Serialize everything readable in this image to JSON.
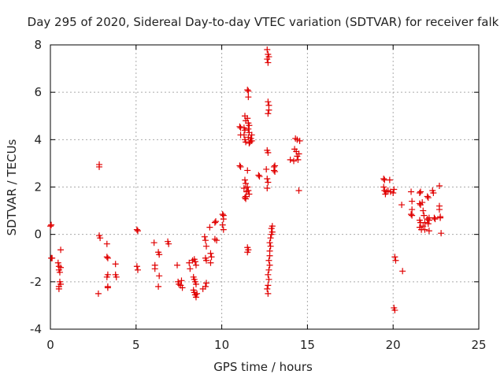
{
  "chart_data": {
    "type": "scatter",
    "title": "Day 295 of 2020, Sidereal Day-to-day VTEC variation (SDTVAR) for receiver falk",
    "xlabel": "GPS time / hours",
    "ylabel": "SDTVAR / TECUs",
    "xlim": [
      0,
      25
    ],
    "ylim": [
      -4,
      8
    ],
    "xticks": [
      0,
      5,
      10,
      15,
      20,
      25
    ],
    "yticks": [
      -4,
      -2,
      0,
      2,
      4,
      6,
      8
    ],
    "grid": true,
    "marker": "+",
    "color": "#e00000",
    "series": [
      {
        "name": "SDTVAR",
        "points": [
          [
            0.0,
            0.35
          ],
          [
            0.05,
            0.4
          ],
          [
            0.05,
            -1.0
          ],
          [
            0.1,
            -1.0
          ],
          [
            0.45,
            -1.2
          ],
          [
            0.5,
            -1.35
          ],
          [
            0.5,
            -1.5
          ],
          [
            0.55,
            -1.6
          ],
          [
            0.55,
            -2.0
          ],
          [
            0.5,
            -2.2
          ],
          [
            0.5,
            -2.3
          ],
          [
            0.6,
            -0.65
          ],
          [
            0.6,
            -1.4
          ],
          [
            0.6,
            -2.1
          ],
          [
            2.85,
            2.95
          ],
          [
            2.85,
            2.85
          ],
          [
            2.85,
            -0.05
          ],
          [
            2.9,
            -0.15
          ],
          [
            2.8,
            -2.5
          ],
          [
            3.3,
            -0.4
          ],
          [
            3.3,
            -0.95
          ],
          [
            3.35,
            -1.0
          ],
          [
            3.35,
            -1.7
          ],
          [
            3.3,
            -1.8
          ],
          [
            3.35,
            -2.2
          ],
          [
            3.35,
            -2.25
          ],
          [
            3.8,
            -1.25
          ],
          [
            3.8,
            -1.7
          ],
          [
            3.85,
            -1.8
          ],
          [
            5.05,
            0.2
          ],
          [
            5.1,
            0.15
          ],
          [
            5.05,
            -1.35
          ],
          [
            5.1,
            -1.5
          ],
          [
            6.05,
            -0.35
          ],
          [
            6.1,
            -1.3
          ],
          [
            6.1,
            -1.45
          ],
          [
            6.3,
            -0.75
          ],
          [
            6.35,
            -0.85
          ],
          [
            6.35,
            -1.75
          ],
          [
            6.3,
            -2.2
          ],
          [
            6.85,
            -0.3
          ],
          [
            6.9,
            -0.4
          ],
          [
            7.4,
            -1.3
          ],
          [
            7.45,
            -2.0
          ],
          [
            7.5,
            -2.1
          ],
          [
            7.6,
            -2.15
          ],
          [
            7.65,
            -1.95
          ],
          [
            7.7,
            -2.25
          ],
          [
            8.1,
            -1.2
          ],
          [
            8.15,
            -1.45
          ],
          [
            8.3,
            -1.1
          ],
          [
            8.4,
            -1.05
          ],
          [
            8.45,
            -1.15
          ],
          [
            8.5,
            -1.3
          ],
          [
            8.35,
            -1.8
          ],
          [
            8.4,
            -1.9
          ],
          [
            8.45,
            -2.0
          ],
          [
            8.5,
            -2.1
          ],
          [
            8.35,
            -2.35
          ],
          [
            8.4,
            -2.45
          ],
          [
            8.45,
            -2.55
          ],
          [
            8.5,
            -2.65
          ],
          [
            8.55,
            -2.5
          ],
          [
            8.9,
            -2.3
          ],
          [
            9.05,
            -2.2
          ],
          [
            9.1,
            -2.05
          ],
          [
            9.0,
            -0.1
          ],
          [
            9.05,
            -0.25
          ],
          [
            9.1,
            -0.5
          ],
          [
            9.05,
            -1.0
          ],
          [
            9.1,
            -1.1
          ],
          [
            9.3,
            0.3
          ],
          [
            9.35,
            -0.8
          ],
          [
            9.4,
            -0.95
          ],
          [
            9.35,
            -1.2
          ],
          [
            9.6,
            0.5
          ],
          [
            9.65,
            0.55
          ],
          [
            9.6,
            -0.2
          ],
          [
            9.7,
            -0.25
          ],
          [
            10.05,
            0.85
          ],
          [
            10.1,
            0.8
          ],
          [
            10.1,
            0.65
          ],
          [
            10.05,
            0.4
          ],
          [
            10.1,
            0.2
          ],
          [
            11.05,
            4.55
          ],
          [
            11.1,
            4.5
          ],
          [
            11.1,
            4.2
          ],
          [
            11.05,
            2.9
          ],
          [
            11.1,
            2.85
          ],
          [
            11.35,
            5.0
          ],
          [
            11.4,
            4.8
          ],
          [
            11.3,
            4.5
          ],
          [
            11.35,
            4.4
          ],
          [
            11.3,
            4.2
          ],
          [
            11.35,
            4.0
          ],
          [
            11.4,
            3.9
          ],
          [
            11.5,
            6.1
          ],
          [
            11.55,
            6.05
          ],
          [
            11.55,
            5.8
          ],
          [
            11.5,
            4.9
          ],
          [
            11.55,
            4.7
          ],
          [
            11.6,
            4.6
          ],
          [
            11.55,
            4.45
          ],
          [
            11.6,
            4.3
          ],
          [
            11.55,
            4.1
          ],
          [
            11.6,
            3.85
          ],
          [
            11.65,
            3.9
          ],
          [
            11.7,
            4.05
          ],
          [
            11.75,
            4.2
          ],
          [
            11.75,
            3.95
          ],
          [
            11.5,
            2.7
          ],
          [
            11.35,
            2.3
          ],
          [
            11.4,
            2.15
          ],
          [
            11.3,
            1.95
          ],
          [
            11.45,
            1.8
          ],
          [
            11.55,
            1.85
          ],
          [
            11.6,
            1.7
          ],
          [
            11.4,
            1.6
          ],
          [
            11.35,
            1.55
          ],
          [
            11.4,
            1.5
          ],
          [
            11.5,
            2.0
          ],
          [
            11.5,
            -0.55
          ],
          [
            11.55,
            -0.65
          ],
          [
            11.5,
            -0.75
          ],
          [
            12.15,
            2.5
          ],
          [
            12.2,
            2.45
          ],
          [
            12.65,
            7.8
          ],
          [
            12.7,
            7.6
          ],
          [
            12.75,
            7.5
          ],
          [
            12.65,
            7.4
          ],
          [
            12.7,
            7.25
          ],
          [
            12.7,
            5.6
          ],
          [
            12.75,
            5.45
          ],
          [
            12.75,
            5.25
          ],
          [
            12.7,
            5.1
          ],
          [
            12.65,
            3.55
          ],
          [
            12.7,
            3.45
          ],
          [
            12.6,
            2.75
          ],
          [
            12.65,
            2.35
          ],
          [
            12.7,
            2.2
          ],
          [
            12.65,
            1.95
          ],
          [
            12.95,
            0.35
          ],
          [
            12.9,
            0.25
          ],
          [
            12.95,
            0.1
          ],
          [
            12.9,
            0.0
          ],
          [
            12.85,
            -0.15
          ],
          [
            12.8,
            -0.35
          ],
          [
            12.85,
            -0.5
          ],
          [
            12.8,
            -0.7
          ],
          [
            12.8,
            -0.9
          ],
          [
            12.75,
            -1.1
          ],
          [
            12.8,
            -1.3
          ],
          [
            12.75,
            -1.5
          ],
          [
            12.7,
            -1.7
          ],
          [
            12.75,
            -1.9
          ],
          [
            12.7,
            -2.15
          ],
          [
            12.65,
            -2.3
          ],
          [
            12.7,
            -2.5
          ],
          [
            13.05,
            2.85
          ],
          [
            13.1,
            2.9
          ],
          [
            13.05,
            2.7
          ],
          [
            13.1,
            2.65
          ],
          [
            14.0,
            3.15
          ],
          [
            14.2,
            3.1
          ],
          [
            14.25,
            3.6
          ],
          [
            14.35,
            3.5
          ],
          [
            14.4,
            3.3
          ],
          [
            14.45,
            3.15
          ],
          [
            14.5,
            3.4
          ],
          [
            14.3,
            4.05
          ],
          [
            14.4,
            4.0
          ],
          [
            14.55,
            3.95
          ],
          [
            14.5,
            1.85
          ],
          [
            19.45,
            2.35
          ],
          [
            19.5,
            2.3
          ],
          [
            19.45,
            2.0
          ],
          [
            19.55,
            1.7
          ],
          [
            19.5,
            1.85
          ],
          [
            19.6,
            1.8
          ],
          [
            19.7,
            1.85
          ],
          [
            19.8,
            2.3
          ],
          [
            19.85,
            1.8
          ],
          [
            20.0,
            1.75
          ],
          [
            20.05,
            1.9
          ],
          [
            20.1,
            -0.95
          ],
          [
            20.15,
            -1.1
          ],
          [
            20.05,
            -3.1
          ],
          [
            20.1,
            -3.2
          ],
          [
            20.5,
            1.25
          ],
          [
            20.55,
            -1.55
          ],
          [
            21.05,
            1.8
          ],
          [
            21.1,
            1.4
          ],
          [
            21.1,
            1.05
          ],
          [
            21.05,
            0.85
          ],
          [
            21.1,
            0.8
          ],
          [
            21.55,
            1.75
          ],
          [
            21.6,
            1.8
          ],
          [
            21.55,
            1.3
          ],
          [
            21.6,
            1.25
          ],
          [
            21.55,
            0.6
          ],
          [
            21.6,
            0.5
          ],
          [
            21.55,
            0.3
          ],
          [
            21.65,
            0.2
          ],
          [
            21.7,
            1.35
          ],
          [
            21.75,
            1.0
          ],
          [
            21.8,
            0.8
          ],
          [
            21.75,
            0.35
          ],
          [
            21.85,
            0.2
          ],
          [
            21.85,
            0.5
          ],
          [
            22.0,
            1.6
          ],
          [
            22.05,
            1.55
          ],
          [
            22.0,
            0.65
          ],
          [
            22.1,
            0.7
          ],
          [
            22.05,
            0.45
          ],
          [
            22.1,
            0.15
          ],
          [
            22.1,
            0.6
          ],
          [
            22.3,
            1.85
          ],
          [
            22.35,
            1.75
          ],
          [
            22.4,
            0.7
          ],
          [
            22.45,
            0.65
          ],
          [
            22.7,
            2.05
          ],
          [
            22.7,
            1.2
          ],
          [
            22.7,
            1.05
          ],
          [
            22.75,
            0.75
          ],
          [
            22.75,
            0.7
          ],
          [
            22.8,
            0.05
          ]
        ]
      }
    ]
  }
}
